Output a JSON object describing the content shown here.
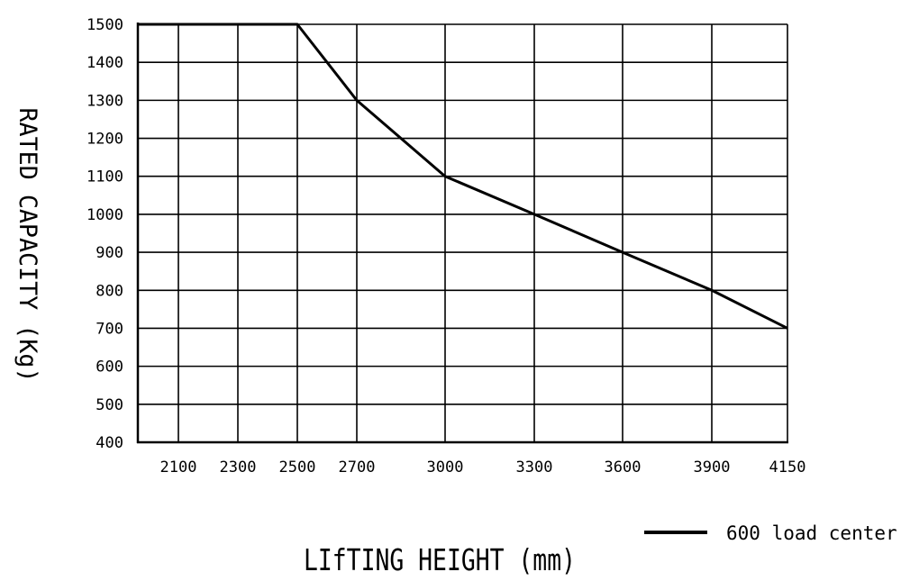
{
  "chart_data": {
    "type": "line",
    "title": "",
    "xlabel": "LIfTING HEIGHT (mm)",
    "ylabel": "RATED CAPACITY (Kg)",
    "x_categories": [
      "2100",
      "2300",
      "2500",
      "2700",
      "3000",
      "3300",
      "3600",
      "3900",
      "4150"
    ],
    "y_ticks": [
      "400",
      "500",
      "600",
      "700",
      "800",
      "900",
      "1000",
      "1100",
      "1200",
      "1300",
      "1400",
      "1500"
    ],
    "ylim": [
      400,
      1500
    ],
    "grid": true,
    "legend_position": "bottom-right",
    "series": [
      {
        "name": "600 load center",
        "color": "#000000",
        "points": [
          {
            "x": "start",
            "y": 1500
          },
          {
            "x": "2500",
            "y": 1500
          },
          {
            "x": "2700",
            "y": 1300
          },
          {
            "x": "3000",
            "y": 1100
          },
          {
            "x": "3300",
            "y": 1000
          },
          {
            "x": "3600",
            "y": 900
          },
          {
            "x": "3900",
            "y": 800
          },
          {
            "x": "4150",
            "y": 700
          }
        ]
      }
    ]
  }
}
